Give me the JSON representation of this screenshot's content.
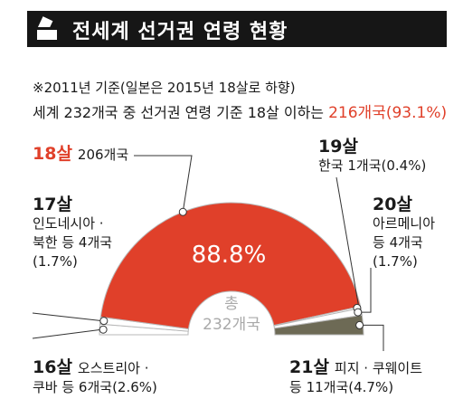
{
  "header": {
    "title": "전세계 선거권 연령 현황",
    "icon": "ballot-box-icon",
    "note": "※2011년 기준(일본은 2015년 18살로 하향)",
    "summary_prefix": "세계 232개국 중 선거권 연령 기준 18살 이하는 ",
    "summary_highlight": "216개국(93.1%)"
  },
  "colors": {
    "accent_red": "#e0402a",
    "olive": "#6d6a55",
    "gray": "#a9a9a9",
    "title_bg": "#161616"
  },
  "labels": {
    "age18": {
      "age": "18살",
      "text": "206개국"
    },
    "age19": {
      "age": "19살",
      "line1": "한국 1개국(0.4%)"
    },
    "age17": {
      "age": "17살",
      "line1": "인도네시아 ·",
      "line2": "북한 등 4개국",
      "line3": "(1.7%)"
    },
    "age20": {
      "age": "20살",
      "line1": "아르메니아",
      "line2": "등 4개국",
      "line3": "(1.7%)"
    },
    "age16": {
      "age": "16살",
      "line1": "오스트리아 ·",
      "line2": "쿠바 등 6개국(2.6%)"
    },
    "age21": {
      "age": "21살",
      "line1": "피지 · 쿠웨이트",
      "line2": "등 11개국(4.7%)"
    }
  },
  "center": {
    "line1": "총",
    "line2": "232개국"
  },
  "big_percent": "88.8%",
  "chart_data": {
    "type": "pie",
    "total": 232,
    "slices": [
      {
        "label": "16살",
        "count": 6,
        "percent": 2.6
      },
      {
        "label": "17살",
        "count": 4,
        "percent": 1.7
      },
      {
        "label": "18살",
        "count": 206,
        "percent": 88.8
      },
      {
        "label": "19살",
        "count": 1,
        "percent": 0.4
      },
      {
        "label": "20살",
        "count": 4,
        "percent": 1.7
      },
      {
        "label": "21살",
        "count": 11,
        "percent": 4.7
      }
    ]
  }
}
